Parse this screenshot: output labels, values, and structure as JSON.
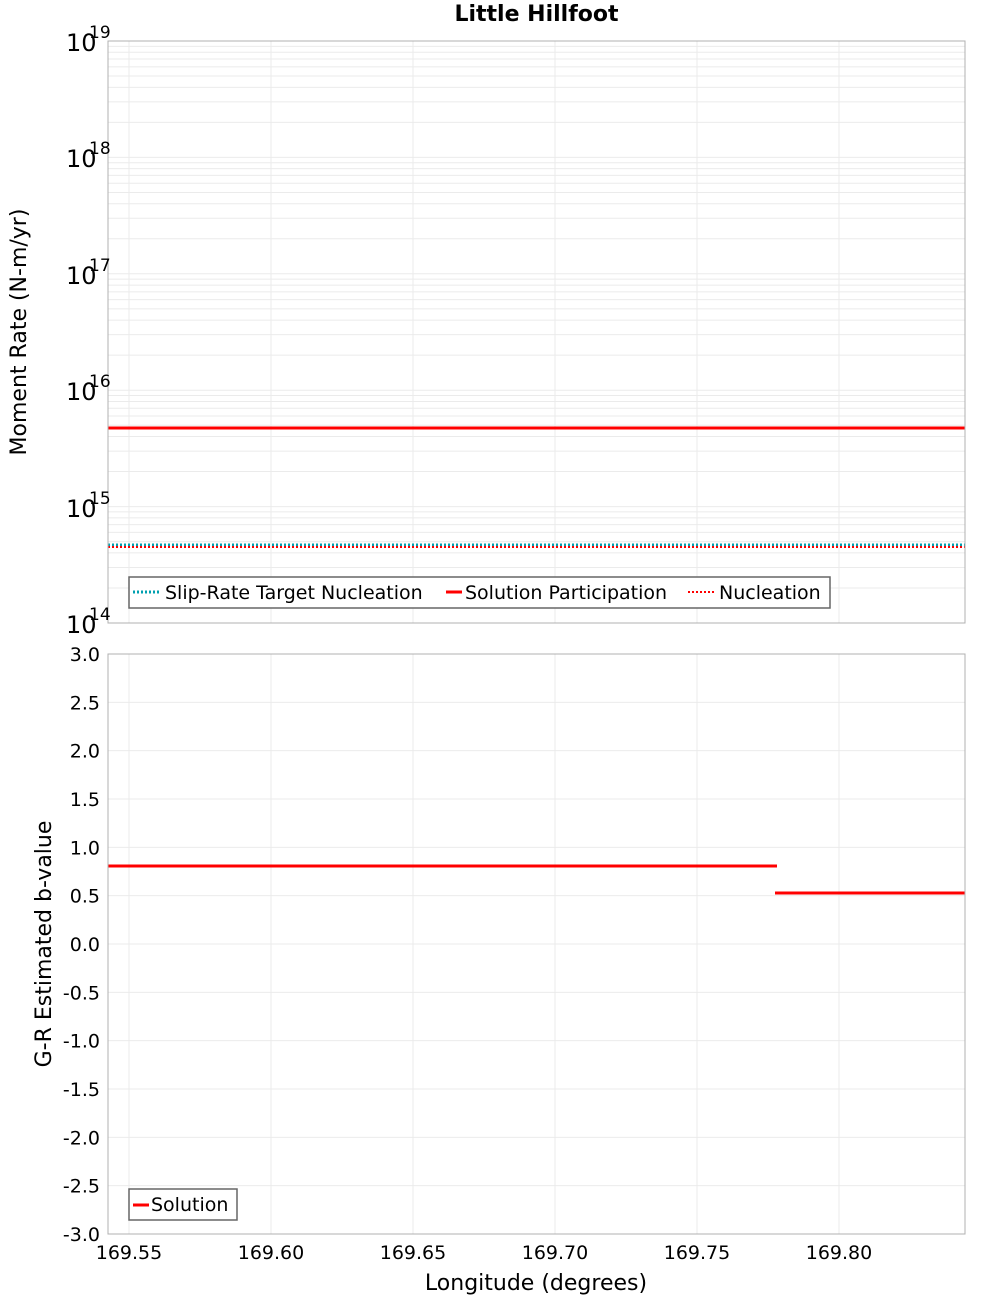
{
  "title": "Little Hillfoot",
  "top_plot": {
    "ylabel": "Moment Rate (N-m/yr)",
    "yticks": [
      {
        "base": "10",
        "exp": "19"
      },
      {
        "base": "10",
        "exp": "18"
      },
      {
        "base": "10",
        "exp": "17"
      },
      {
        "base": "10",
        "exp": "16"
      },
      {
        "base": "10",
        "exp": "15"
      },
      {
        "base": "10",
        "exp": "14"
      }
    ],
    "legend": [
      {
        "label": "Slip-Rate Target Nucleation",
        "color": "#00a0b0",
        "style": "dotted"
      },
      {
        "label": "Solution Participation",
        "color": "#ff0000",
        "style": "solid"
      },
      {
        "label": "Nucleation",
        "color": "#ff0000",
        "style": "dotted"
      }
    ]
  },
  "bottom_plot": {
    "ylabel": "G-R Estimated b-value",
    "yticks": [
      "3.0",
      "2.5",
      "2.0",
      "1.5",
      "1.0",
      "0.5",
      "0.0",
      "-0.5",
      "-1.0",
      "-1.5",
      "-2.0",
      "-2.5",
      "-3.0"
    ],
    "legend": [
      {
        "label": "Solution",
        "color": "#ff0000",
        "style": "solid"
      }
    ]
  },
  "xaxis": {
    "label": "Longitude (degrees)",
    "ticks": [
      "169.55",
      "169.60",
      "169.65",
      "169.70",
      "169.75",
      "169.80"
    ]
  },
  "chart_data": [
    {
      "type": "line",
      "title": "Little Hillfoot",
      "xlabel": "Longitude (degrees)",
      "ylabel": "Moment Rate (N-m/yr)",
      "yscale": "log",
      "ylim": [
        100000000000000.0,
        1e+19
      ],
      "xlim": [
        169.5426,
        169.844
      ],
      "grid": true,
      "legend_position": "lower left",
      "series": [
        {
          "name": "Slip-Rate Target Nucleation",
          "color": "#00a0b0",
          "style": "dotted",
          "x": [
            169.5426,
            169.666,
            169.778,
            169.844
          ],
          "y": [
            460000000000000.0,
            460000000000000.0,
            460000000000000.0,
            460000000000000.0
          ]
        },
        {
          "name": "Solution Participation",
          "color": "#ff0000",
          "style": "solid",
          "x": [
            169.5426,
            169.666,
            169.778,
            169.844
          ],
          "y": [
            4800000000000000.0,
            4800000000000000.0,
            4800000000000000.0,
            4800000000000000.0
          ]
        },
        {
          "name": "Nucleation",
          "color": "#ff0000",
          "style": "dotted",
          "x": [
            169.5426,
            169.666,
            169.778,
            169.844
          ],
          "y": [
            460000000000000.0,
            460000000000000.0,
            460000000000000.0,
            460000000000000.0
          ]
        }
      ]
    },
    {
      "type": "line",
      "xlabel": "Longitude (degrees)",
      "ylabel": "G-R Estimated b-value",
      "ylim": [
        -3.0,
        3.0
      ],
      "xlim": [
        169.5426,
        169.844
      ],
      "xticks": [
        "169.55",
        "169.60",
        "169.65",
        "169.70",
        "169.75",
        "169.80"
      ],
      "grid": true,
      "legend_position": "lower left",
      "series": [
        {
          "name": "Solution",
          "color": "#ff0000",
          "style": "solid",
          "segments": [
            {
              "x": [
                169.5426,
                169.666
              ],
              "y": [
                0.8,
                0.8
              ]
            },
            {
              "x": [
                169.666,
                169.778
              ],
              "y": [
                0.8,
                0.8
              ]
            },
            {
              "x": [
                169.778,
                169.844
              ],
              "y": [
                0.53,
                0.53
              ]
            }
          ]
        }
      ]
    }
  ]
}
